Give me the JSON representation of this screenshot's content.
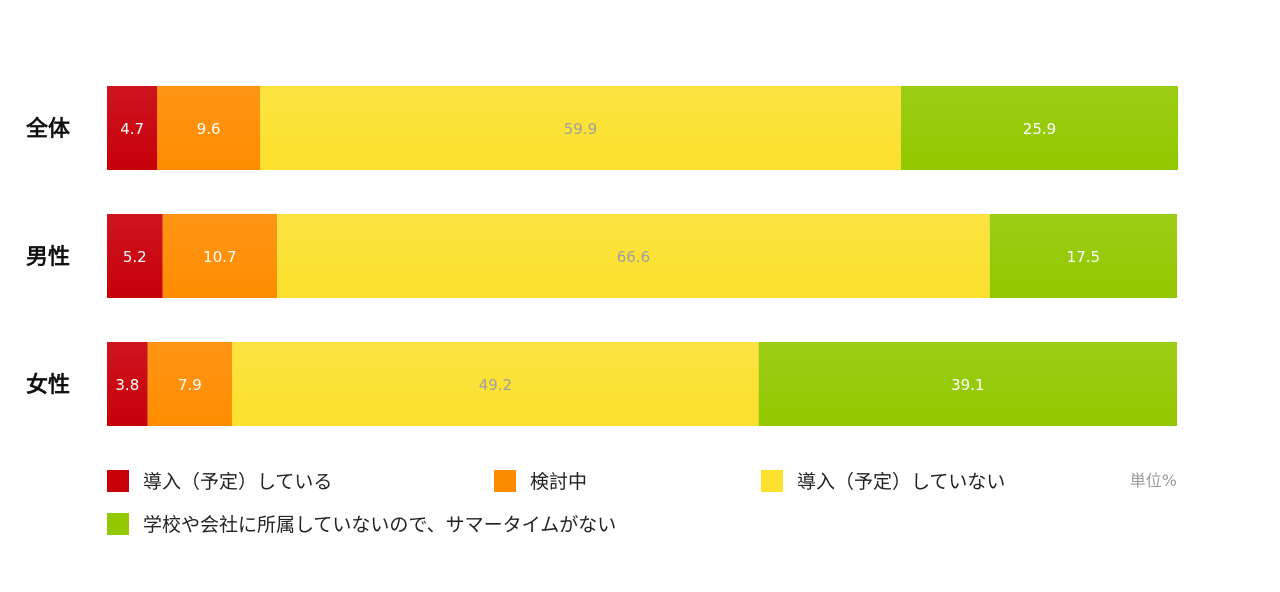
{
  "chart_data": {
    "type": "bar",
    "orientation": "horizontal",
    "stacked": true,
    "unit_label": "単位%",
    "categories": [
      "全体",
      "男性",
      "女性"
    ],
    "series": [
      {
        "name": "導入（予定）している",
        "color": "#c8000a",
        "label_color": "#ffffff",
        "values": [
          4.7,
          5.2,
          3.8
        ]
      },
      {
        "name": "検討中",
        "color": "#ff8c00",
        "label_color": "#ffffff",
        "values": [
          9.6,
          10.7,
          7.9
        ]
      },
      {
        "name": "導入（予定）していない",
        "color": "#fce02e",
        "label_color": "#a0a0a0",
        "values": [
          59.9,
          66.6,
          49.2
        ]
      },
      {
        "name": "学校や会社に所属していないので、サマータイムがない",
        "color": "#93c800",
        "label_color": "#ffffff",
        "values": [
          25.9,
          17.5,
          39.1
        ]
      }
    ],
    "xlim": [
      0,
      100
    ],
    "legend_position": "bottom"
  }
}
